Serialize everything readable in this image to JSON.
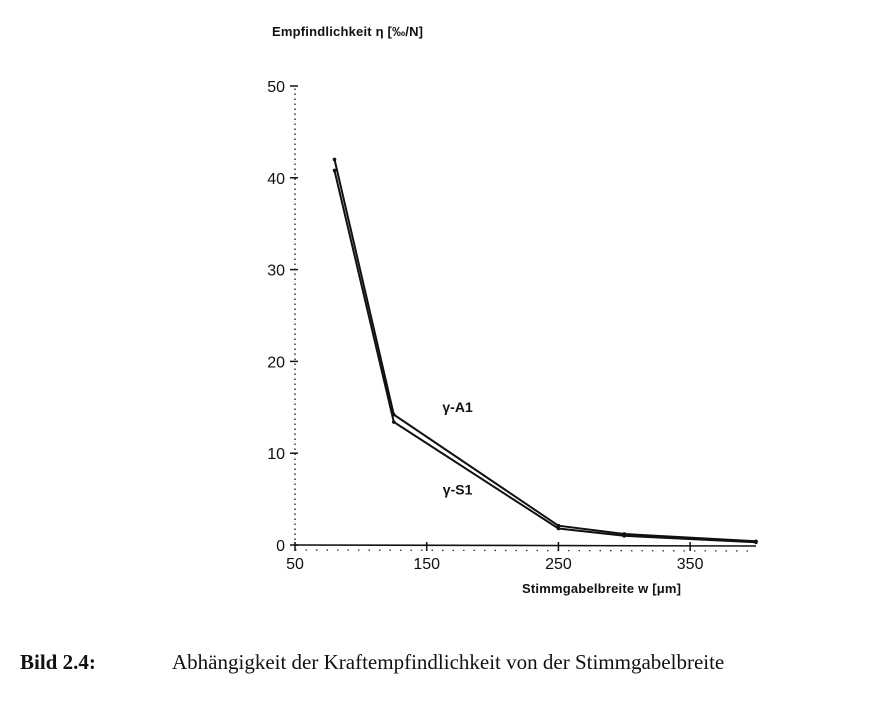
{
  "chart_data": {
    "type": "line",
    "ylabel": "Empfindlichkeit η [‰/N]",
    "xlabel": "Stimmgabelbreite w [μm]",
    "xlim": [
      50,
      400
    ],
    "ylim": [
      0,
      50
    ],
    "xticks": [
      50,
      150,
      250,
      350
    ],
    "yticks": [
      0,
      10,
      20,
      30,
      40,
      50
    ],
    "series": [
      {
        "name": "γ-A1",
        "x": [
          80,
          125,
          250,
          300,
          400
        ],
        "values": [
          42,
          14.2,
          2.1,
          1.2,
          0.4
        ]
      },
      {
        "name": "γ-S1",
        "x": [
          80,
          125,
          250,
          300,
          400
        ],
        "values": [
          40.8,
          13.4,
          1.8,
          1.0,
          0.3
        ]
      }
    ],
    "series_labels": [
      "γ-A1",
      "γ-S1"
    ]
  },
  "caption": {
    "number": "Bild 2.4:",
    "text": "Abhängigkeit der Kraftempfindlichkeit von der Stimmgabelbreite"
  }
}
